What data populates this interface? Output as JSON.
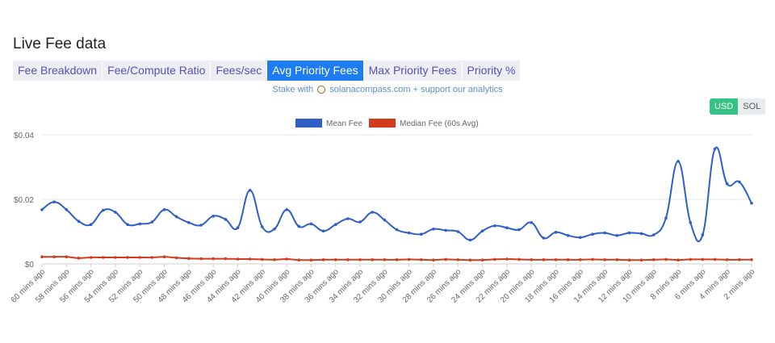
{
  "page": {
    "title": "Live Fee data",
    "tabs": [
      {
        "label": "Fee Breakdown",
        "active": false
      },
      {
        "label": "Fee/Compute Ratio",
        "active": false
      },
      {
        "label": "Fees/sec",
        "active": false
      },
      {
        "label": "Avg Priority Fees",
        "active": true
      },
      {
        "label": "Max Priority Fees",
        "active": false
      },
      {
        "label": "Priority %",
        "active": false
      }
    ],
    "stake": {
      "prefix": "Stake with",
      "site": "solanacompass.com",
      "suffix": "+ support our analytics"
    },
    "currency": {
      "usd": "USD",
      "sol": "SOL",
      "selected": "USD"
    }
  },
  "chart_data": {
    "type": "line",
    "title": "",
    "xlabel": "",
    "ylabel": "",
    "ylim": [
      0,
      0.04
    ],
    "y_ticks": [
      {
        "value": 0,
        "label": "$0"
      },
      {
        "value": 0.02,
        "label": "$0.02"
      },
      {
        "value": 0.04,
        "label": "$0.04"
      }
    ],
    "legend_position": "top",
    "grid": true,
    "x_labels": [
      "60 mins ago",
      "58 mins ago",
      "56 mins ago",
      "54 mins ago",
      "52 mins ago",
      "50 mins ago",
      "48 mins ago",
      "46 mins ago",
      "44 mins ago",
      "42 mins ago",
      "40 mins ago",
      "38 mins ago",
      "36 mins ago",
      "34 mins ago",
      "32 mins ago",
      "30 mins ago",
      "28 mins ago",
      "26 mins ago",
      "24 mins ago",
      "22 mins ago",
      "20 mins ago",
      "18 mins ago",
      "16 mins ago",
      "14 mins ago",
      "12 mins ago",
      "10 mins ago",
      "8 mins ago",
      "6 mins ago",
      "4 mins ago",
      "2 mins ago"
    ],
    "series": [
      {
        "name": "Mean Fee",
        "color": "#2f5fc4",
        "values": [
          0.0168,
          0.0192,
          0.0168,
          0.0132,
          0.0122,
          0.0166,
          0.016,
          0.0122,
          0.0124,
          0.013,
          0.0168,
          0.0146,
          0.0128,
          0.012,
          0.0148,
          0.0138,
          0.0112,
          0.0228,
          0.0115,
          0.0108,
          0.0168,
          0.0116,
          0.0124,
          0.0102,
          0.0122,
          0.014,
          0.013,
          0.016,
          0.0136,
          0.0106,
          0.0096,
          0.0092,
          0.0108,
          0.0104,
          0.01,
          0.0074,
          0.0102,
          0.0118,
          0.0112,
          0.0106,
          0.0128,
          0.008,
          0.0098,
          0.0088,
          0.0082,
          0.0092,
          0.0096,
          0.0088,
          0.0096,
          0.0094,
          0.009,
          0.0142,
          0.0318,
          0.0128,
          0.009,
          0.0356,
          0.0248,
          0.0254,
          0.0188
        ]
      },
      {
        "name": "Median Fee (60s Avg)",
        "color": "#d13d1c",
        "values": [
          0.0022,
          0.0022,
          0.0022,
          0.0018,
          0.002,
          0.002,
          0.002,
          0.002,
          0.002,
          0.002,
          0.0022,
          0.0019,
          0.0017,
          0.0016,
          0.0016,
          0.0016,
          0.0015,
          0.0015,
          0.0014,
          0.0013,
          0.0015,
          0.0012,
          0.0012,
          0.0013,
          0.0013,
          0.0013,
          0.0013,
          0.0013,
          0.0013,
          0.0013,
          0.0014,
          0.0013,
          0.0012,
          0.0014,
          0.0013,
          0.0012,
          0.0012,
          0.0014,
          0.0015,
          0.0014,
          0.0013,
          0.0013,
          0.0013,
          0.0013,
          0.0013,
          0.0014,
          0.0013,
          0.0013,
          0.0012,
          0.0012,
          0.0013,
          0.0014,
          0.0012,
          0.0014,
          0.0014,
          0.0014,
          0.0013,
          0.0013,
          0.0013
        ]
      }
    ]
  }
}
